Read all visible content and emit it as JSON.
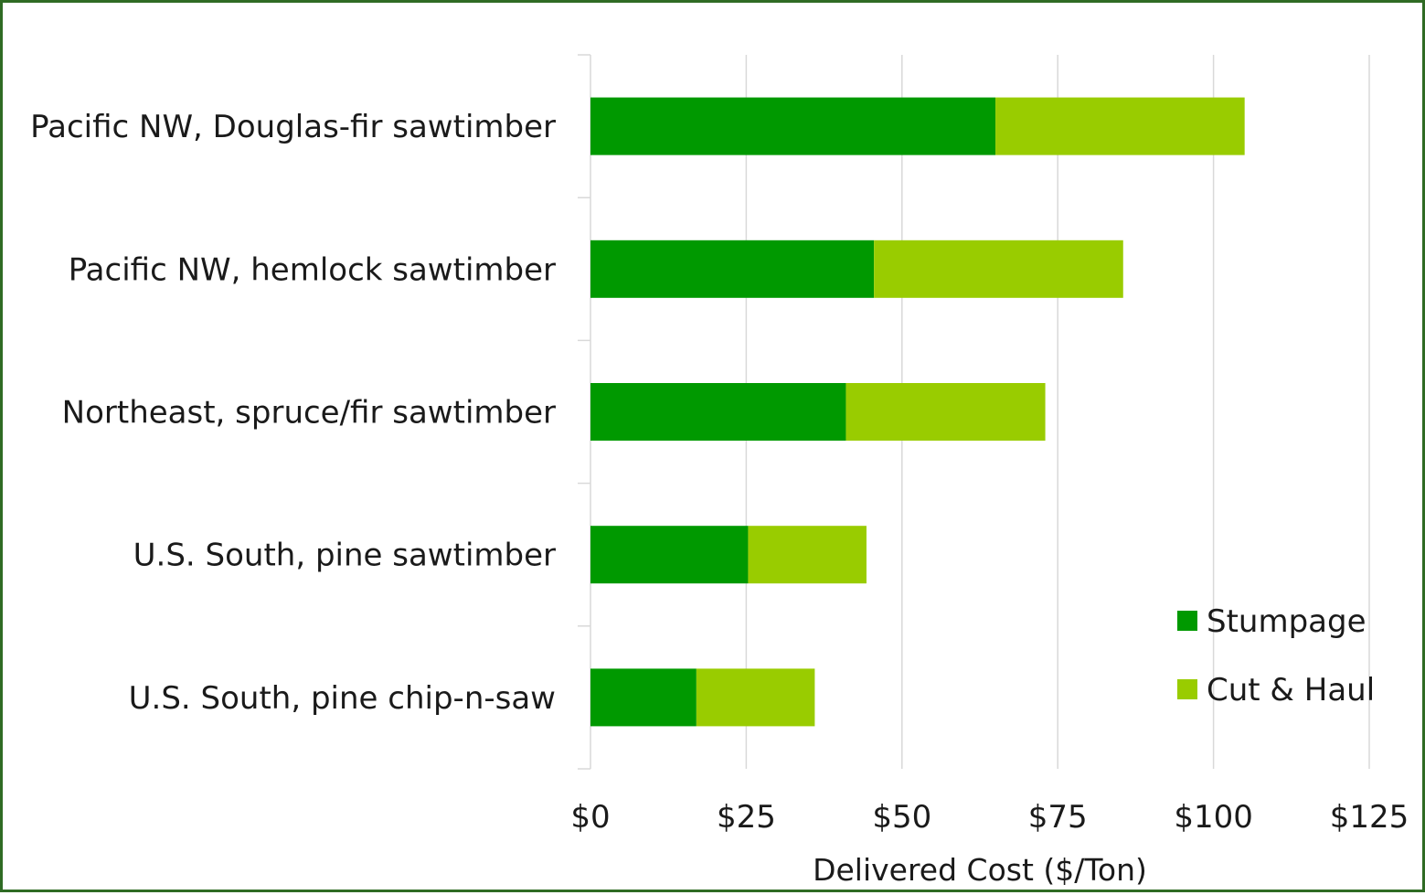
{
  "chart_data": {
    "type": "bar",
    "orientation": "horizontal",
    "stacked": true,
    "categories": [
      "Pacific NW, Douglas-fir sawtimber",
      "Pacific NW, hemlock sawtimber",
      "Northeast, spruce/fir sawtimber",
      "U.S. South, pine sawtimber",
      "U.S. South, pine chip-n-saw"
    ],
    "series": [
      {
        "name": "Stumpage",
        "color": "#009900",
        "values": [
          65,
          45.5,
          41,
          25.3,
          17
        ]
      },
      {
        "name": "Cut & Haul",
        "color": "#99cc00",
        "values": [
          40,
          40,
          32,
          19,
          19
        ]
      }
    ],
    "xlabel": "Delivered Cost ($/Ton)",
    "ylabel": "",
    "xlim": [
      0,
      125
    ],
    "xticks": [
      0,
      25,
      50,
      75,
      100,
      125
    ],
    "xtick_labels": [
      "$0",
      "$25",
      "$50",
      "$75",
      "$100",
      "$125"
    ],
    "grid": true,
    "legend_position": "bottom-right"
  }
}
